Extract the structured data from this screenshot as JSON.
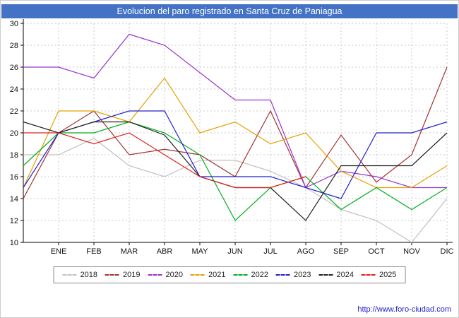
{
  "title": "Evolucion del paro registrado en Santa Cruz de Paniagua",
  "footer": {
    "url": "http://www.foro-ciudad.com"
  },
  "colors": {
    "title_bar": "#4472c4",
    "title_text": "#ffffff",
    "grid": "#c8c8c8",
    "axis": "#000000",
    "url_text": "#2222cc"
  },
  "chart_data": {
    "type": "line",
    "title": "Evolucion del paro registrado en Santa Cruz de Paniagua",
    "xlabel": "",
    "ylabel": "",
    "ylim": [
      10,
      30
    ],
    "y_ticks": [
      10,
      12,
      14,
      16,
      18,
      20,
      22,
      24,
      26,
      28,
      30
    ],
    "x_labels": [
      "ENE",
      "FEB",
      "MAR",
      "ABR",
      "MAY",
      "JUN",
      "JUL",
      "AGO",
      "SEP",
      "OCT",
      "NOV",
      "DIC"
    ],
    "grid": true,
    "legend_position": "bottom",
    "note": "First value of each series is the lead-in point drawn on the left axis (previous December); remaining values are ENE..DIC.",
    "series": [
      {
        "name": "2018",
        "color": "#c0c0c0",
        "values": [
          18,
          18,
          19.5,
          17,
          16,
          17.5,
          17.5,
          16.5,
          15,
          13,
          12,
          10,
          14
        ]
      },
      {
        "name": "2019",
        "color": "#a03232",
        "values": [
          14,
          20,
          22,
          18,
          18.5,
          18,
          16,
          22,
          15,
          19.8,
          15.5,
          18,
          26
        ]
      },
      {
        "name": "2020",
        "color": "#9933cc",
        "values": [
          26,
          26,
          25,
          29,
          28,
          25.5,
          23,
          23,
          15,
          16.5,
          16,
          15,
          15
        ]
      },
      {
        "name": "2021",
        "color": "#e8a000",
        "values": [
          15,
          22,
          22,
          21,
          25,
          20,
          21,
          19,
          20,
          16.5,
          15,
          15,
          17
        ]
      },
      {
        "name": "2022",
        "color": "#00b020",
        "values": [
          17,
          20,
          20,
          21,
          20,
          18,
          12,
          15,
          16,
          13,
          15,
          13,
          15
        ]
      },
      {
        "name": "2023",
        "color": "#2222cc",
        "values": [
          15,
          20,
          21,
          22,
          22,
          16,
          16,
          16,
          15,
          14,
          20,
          20,
          21
        ]
      },
      {
        "name": "2024",
        "color": "#202020",
        "values": [
          21,
          20,
          21,
          21,
          19.8,
          16,
          15,
          15,
          12,
          17,
          17,
          17,
          20
        ]
      },
      {
        "name": "2025",
        "color": "#e02020",
        "values": [
          20,
          20,
          19,
          20,
          18,
          16,
          15,
          15,
          16
        ]
      }
    ]
  }
}
